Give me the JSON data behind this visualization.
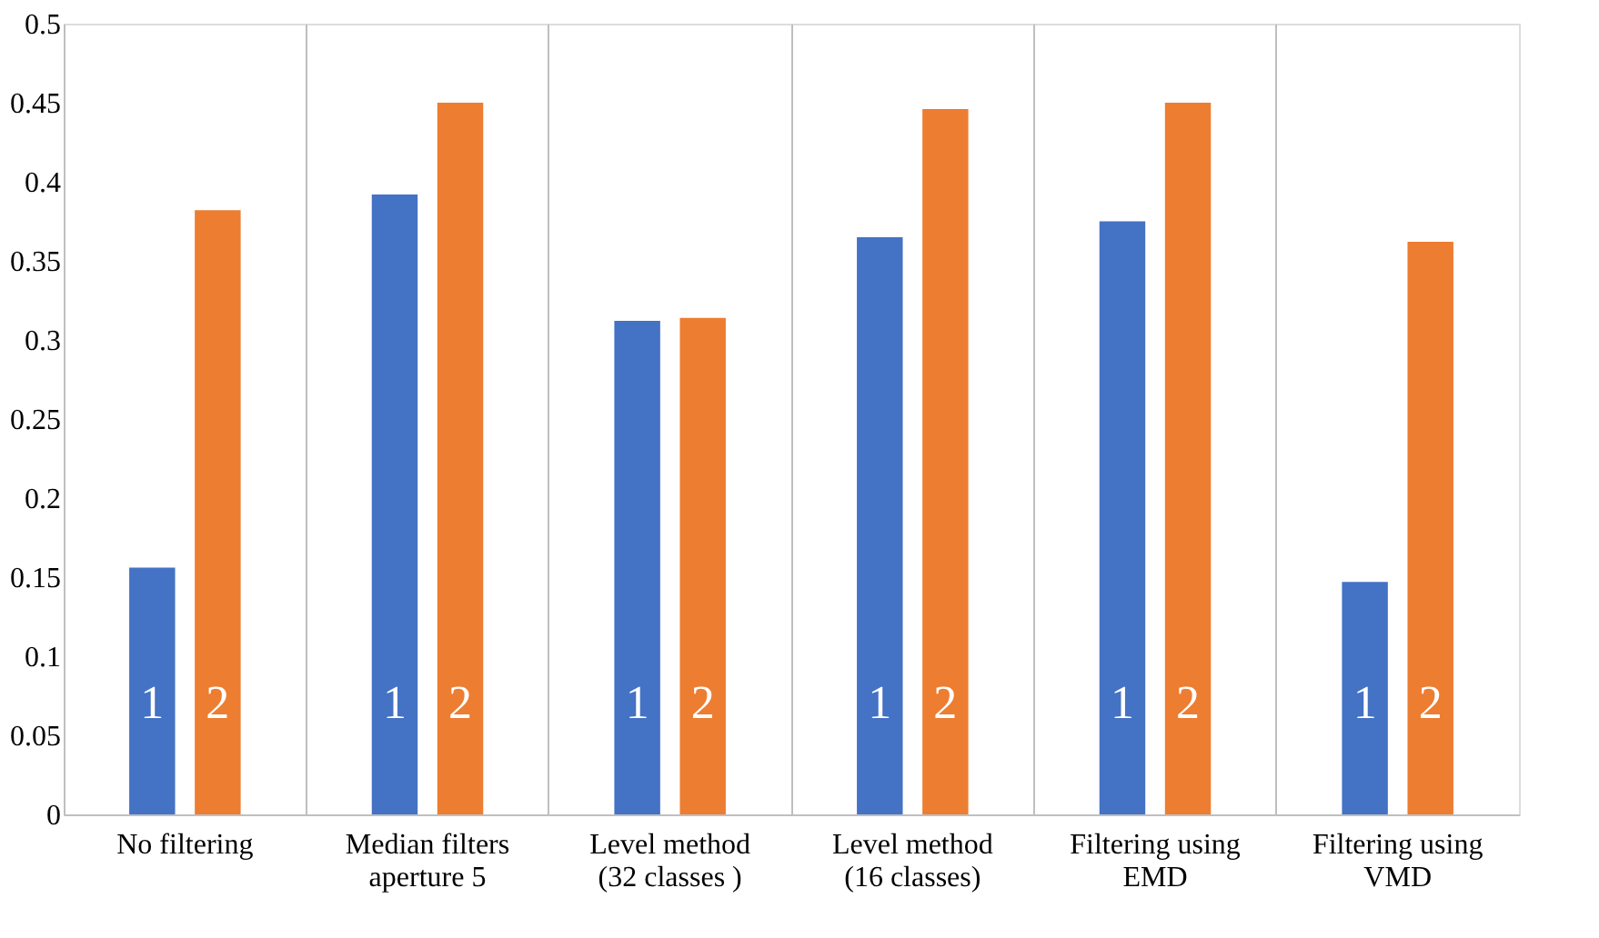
{
  "chart_data": {
    "type": "bar",
    "categories": [
      "No filtering",
      "Median filters\naperture 5",
      "Level method\n(32 classes )",
      "Level method\n(16 classes)",
      "Filtering using\nEMD",
      "Filtering using\nVMD"
    ],
    "series": [
      {
        "name": "1",
        "color": "#4472c4",
        "values": [
          0.156,
          0.392,
          0.312,
          0.365,
          0.375,
          0.147
        ]
      },
      {
        "name": "2",
        "color": "#ed7d31",
        "values": [
          0.382,
          0.45,
          0.314,
          0.446,
          0.45,
          0.362
        ]
      }
    ],
    "ylim": [
      0,
      0.5
    ],
    "yticks": [
      0,
      0.05,
      0.1,
      0.15,
      0.2,
      0.25,
      0.3,
      0.35,
      0.4,
      0.45,
      0.5
    ],
    "grid": "x",
    "legend": false
  }
}
